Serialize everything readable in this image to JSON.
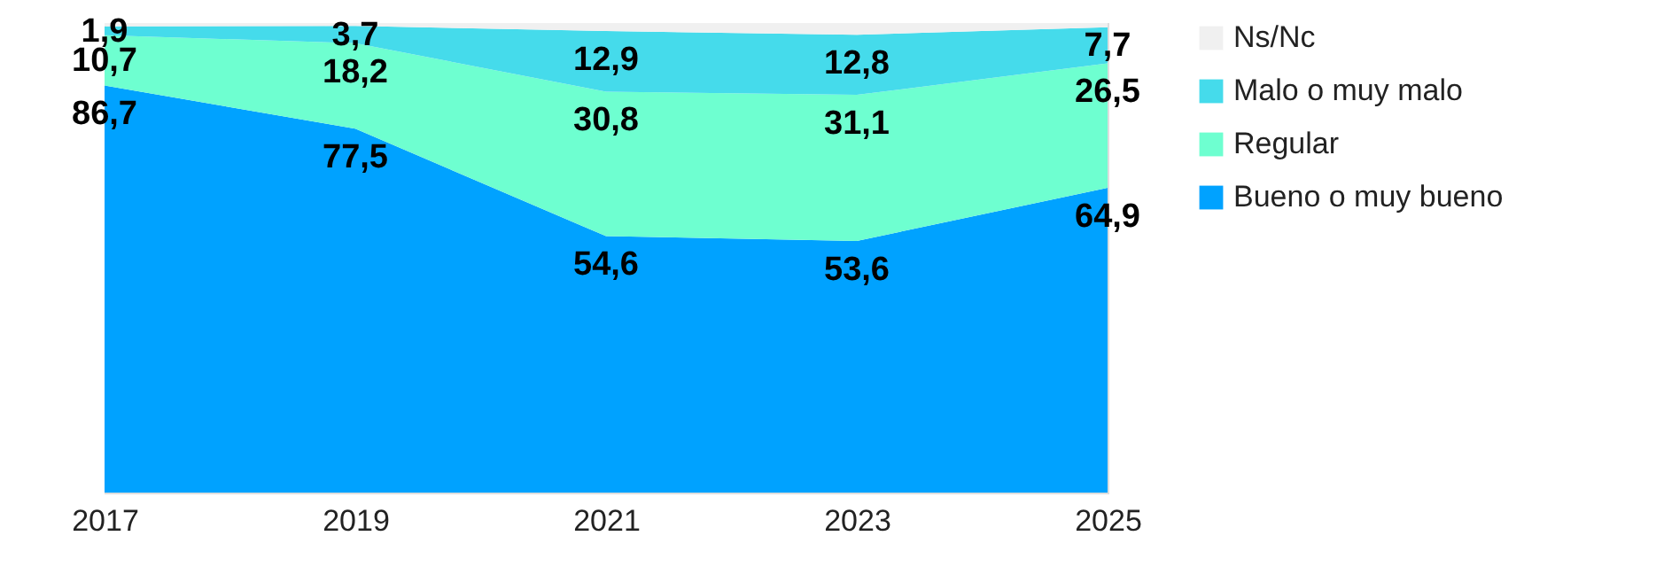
{
  "chart_data": {
    "type": "area",
    "stacked": true,
    "categories": [
      "2017",
      "2019",
      "2021",
      "2023",
      "2025"
    ],
    "ylim": [
      0,
      100
    ],
    "tick_labels": "x",
    "legend": "right",
    "grid": false,
    "series": [
      {
        "name": "Bueno o muy bueno",
        "color": "#00a2ff",
        "values": [
          86.7,
          77.5,
          54.6,
          53.6,
          64.9
        ],
        "value_labels": [
          "86,7",
          "77,5",
          "54,6",
          "53,6",
          "64,9"
        ]
      },
      {
        "name": "Regular",
        "color": "#6effd0",
        "values": [
          10.7,
          18.2,
          30.8,
          31.1,
          26.5
        ],
        "value_labels": [
          "10,7",
          "18,2",
          "30,8",
          "31,1",
          "26,5"
        ]
      },
      {
        "name": "Malo o muy malo",
        "color": "#45dbeb",
        "values": [
          1.9,
          3.7,
          12.9,
          12.8,
          7.7
        ],
        "value_labels": [
          "1,9",
          "3,7",
          "12,9",
          "12,8",
          "7,7"
        ]
      },
      {
        "name": "Ns/Nc",
        "color": "#f0f0f0",
        "values": [
          0.7,
          0.6,
          1.7,
          2.5,
          0.9
        ],
        "value_labels": [
          null,
          null,
          null,
          null,
          null
        ]
      }
    ]
  }
}
